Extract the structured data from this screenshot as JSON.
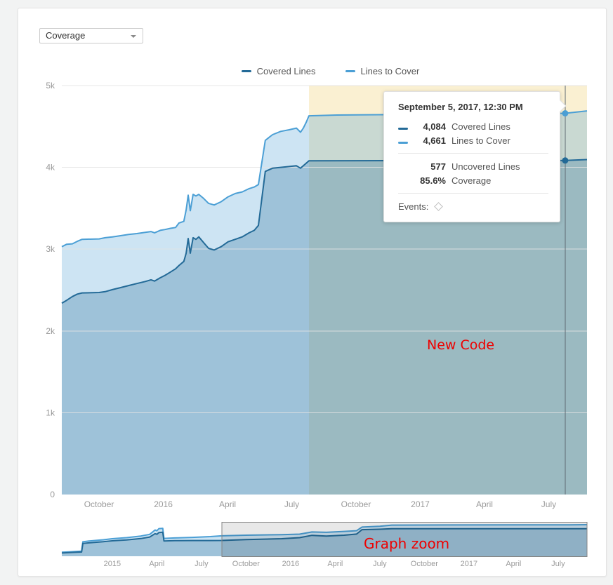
{
  "dropdown": {
    "value": "Coverage"
  },
  "legend": {
    "items": [
      {
        "label": "Covered Lines",
        "color": "#236a97"
      },
      {
        "label": "Lines to Cover",
        "color": "#4b9fd5"
      }
    ]
  },
  "tooltip": {
    "title": "September 5, 2017, 12:30 PM",
    "series": [
      {
        "value": "4,084",
        "label": "Covered Lines",
        "color": "#236a97"
      },
      {
        "value": "4,661",
        "label": "Lines to Cover",
        "color": "#4b9fd5"
      }
    ],
    "derived": [
      {
        "value": "577",
        "label": "Uncovered Lines"
      },
      {
        "value": "85.6%",
        "label": "Coverage"
      }
    ],
    "events_label": "Events:"
  },
  "annotations": {
    "new_code": "New Code",
    "graph_zoom": "Graph zoom"
  },
  "colors": {
    "covered_line": "#236a97",
    "to_cover_line": "#4b9fd5",
    "to_cover_fill": "rgba(75,159,213,0.28)",
    "covered_fill": "rgba(35,106,151,0.28)",
    "new_code_bg": "#faf0d2",
    "gridline": "#e3e3e3",
    "axis_text": "#9b9b9b",
    "hover_line": "#5f6a72",
    "brush_fill": "rgba(0,0,0,0.09)",
    "brush_stroke": "#858585"
  },
  "chart_data": [
    {
      "type": "area",
      "title": "Coverage activity graph",
      "x_domain": [
        2015.605,
        2017.649
      ],
      "y_domain": [
        0,
        5000
      ],
      "ylim": [
        0,
        5000
      ],
      "grid": true,
      "legend_position": "top-center",
      "y_ticks": [
        {
          "v": 0,
          "label": "0"
        },
        {
          "v": 1000,
          "label": "1k"
        },
        {
          "v": 2000,
          "label": "2k"
        },
        {
          "v": 3000,
          "label": "3k"
        },
        {
          "v": 4000,
          "label": "4k"
        },
        {
          "v": 5000,
          "label": "5k"
        }
      ],
      "x_ticks": [
        {
          "t": 2015.75,
          "label": "October"
        },
        {
          "t": 2016.0,
          "label": "2016"
        },
        {
          "t": 2016.25,
          "label": "April"
        },
        {
          "t": 2016.5,
          "label": "July"
        },
        {
          "t": 2016.75,
          "label": "October"
        },
        {
          "t": 2017.0,
          "label": "2017"
        },
        {
          "t": 2017.25,
          "label": "April"
        },
        {
          "t": 2017.5,
          "label": "July"
        }
      ],
      "new_code_period_start": 2016.567,
      "hover": {
        "t": 2017.564,
        "values": [
          4661,
          4084
        ]
      },
      "series": [
        {
          "name": "Lines to Cover",
          "color": "#4b9fd5",
          "points": [
            [
              2015.605,
              3030
            ],
            [
              2015.624,
              3060
            ],
            [
              2015.646,
              3065
            ],
            [
              2015.665,
              3095
            ],
            [
              2015.684,
              3120
            ],
            [
              2015.75,
              3125
            ],
            [
              2015.774,
              3140
            ],
            [
              2015.802,
              3150
            ],
            [
              2015.834,
              3165
            ],
            [
              2015.865,
              3180
            ],
            [
              2015.897,
              3190
            ],
            [
              2015.93,
              3205
            ],
            [
              2015.952,
              3215
            ],
            [
              2015.966,
              3200
            ],
            [
              2015.988,
              3230
            ],
            [
              2016.007,
              3240
            ],
            [
              2016.028,
              3255
            ],
            [
              2016.048,
              3265
            ],
            [
              2016.061,
              3320
            ],
            [
              2016.08,
              3340
            ],
            [
              2016.089,
              3480
            ],
            [
              2016.097,
              3660
            ],
            [
              2016.105,
              3470
            ],
            [
              2016.116,
              3670
            ],
            [
              2016.127,
              3650
            ],
            [
              2016.138,
              3670
            ],
            [
              2016.157,
              3620
            ],
            [
              2016.176,
              3560
            ],
            [
              2016.198,
              3540
            ],
            [
              2016.225,
              3580
            ],
            [
              2016.252,
              3640
            ],
            [
              2016.28,
              3680
            ],
            [
              2016.307,
              3700
            ],
            [
              2016.334,
              3740
            ],
            [
              2016.354,
              3760
            ],
            [
              2016.37,
              3790
            ],
            [
              2016.397,
              4330
            ],
            [
              2016.425,
              4400
            ],
            [
              2016.457,
              4440
            ],
            [
              2016.49,
              4460
            ],
            [
              2016.518,
              4480
            ],
            [
              2016.534,
              4430
            ],
            [
              2016.545,
              4480
            ],
            [
              2016.556,
              4550
            ],
            [
              2016.567,
              4630
            ],
            [
              2016.676,
              4640
            ],
            [
              2016.895,
              4645
            ],
            [
              2017.277,
              4650
            ],
            [
              2017.564,
              4661
            ],
            [
              2017.649,
              4690
            ]
          ]
        },
        {
          "name": "Covered Lines",
          "color": "#236a97",
          "points": [
            [
              2015.605,
              2340
            ],
            [
              2015.624,
              2375
            ],
            [
              2015.646,
              2420
            ],
            [
              2015.665,
              2450
            ],
            [
              2015.684,
              2465
            ],
            [
              2015.75,
              2470
            ],
            [
              2015.774,
              2480
            ],
            [
              2015.802,
              2505
            ],
            [
              2015.834,
              2530
            ],
            [
              2015.865,
              2555
            ],
            [
              2015.897,
              2580
            ],
            [
              2015.93,
              2605
            ],
            [
              2015.952,
              2625
            ],
            [
              2015.966,
              2610
            ],
            [
              2015.988,
              2650
            ],
            [
              2016.007,
              2680
            ],
            [
              2016.028,
              2720
            ],
            [
              2016.048,
              2760
            ],
            [
              2016.061,
              2800
            ],
            [
              2016.08,
              2850
            ],
            [
              2016.089,
              2950
            ],
            [
              2016.097,
              3130
            ],
            [
              2016.105,
              2950
            ],
            [
              2016.116,
              3140
            ],
            [
              2016.127,
              3120
            ],
            [
              2016.138,
              3150
            ],
            [
              2016.157,
              3080
            ],
            [
              2016.176,
              3010
            ],
            [
              2016.198,
              2990
            ],
            [
              2016.225,
              3030
            ],
            [
              2016.252,
              3090
            ],
            [
              2016.28,
              3120
            ],
            [
              2016.307,
              3150
            ],
            [
              2016.334,
              3200
            ],
            [
              2016.354,
              3230
            ],
            [
              2016.37,
              3290
            ],
            [
              2016.397,
              3950
            ],
            [
              2016.425,
              3990
            ],
            [
              2016.457,
              4000
            ],
            [
              2016.49,
              4010
            ],
            [
              2016.518,
              4020
            ],
            [
              2016.534,
              3990
            ],
            [
              2016.545,
              4020
            ],
            [
              2016.556,
              4050
            ],
            [
              2016.567,
              4080
            ],
            [
              2016.895,
              4082
            ],
            [
              2017.277,
              4083
            ],
            [
              2017.564,
              4084
            ],
            [
              2017.649,
              4095
            ]
          ]
        }
      ]
    },
    {
      "type": "area",
      "title": "Graph zoom overview",
      "x_domain": [
        2014.717,
        2017.662
      ],
      "y_domain": [
        0,
        5000
      ],
      "grid": false,
      "brush_range": [
        2015.614,
        2017.662
      ],
      "x_ticks": [
        {
          "t": 2015.0,
          "label": "2015"
        },
        {
          "t": 2015.25,
          "label": "April"
        },
        {
          "t": 2015.5,
          "label": "July"
        },
        {
          "t": 2015.75,
          "label": "October"
        },
        {
          "t": 2016.0,
          "label": "2016"
        },
        {
          "t": 2016.25,
          "label": "April"
        },
        {
          "t": 2016.5,
          "label": "July"
        },
        {
          "t": 2016.75,
          "label": "October"
        },
        {
          "t": 2017.0,
          "label": "2017"
        },
        {
          "t": 2017.25,
          "label": "April"
        },
        {
          "t": 2017.5,
          "label": "July"
        }
      ],
      "series": [
        {
          "name": "Lines to Cover",
          "color": "#4b9fd5",
          "points": [
            [
              2014.717,
              600
            ],
            [
              2014.76,
              660
            ],
            [
              2014.8,
              720
            ],
            [
              2014.828,
              760
            ],
            [
              2014.835,
              2150
            ],
            [
              2014.87,
              2260
            ],
            [
              2014.95,
              2450
            ],
            [
              2015.0,
              2600
            ],
            [
              2015.08,
              2760
            ],
            [
              2015.16,
              3000
            ],
            [
              2015.21,
              3250
            ],
            [
              2015.24,
              3900
            ],
            [
              2015.25,
              3780
            ],
            [
              2015.262,
              4100
            ],
            [
              2015.283,
              4150
            ],
            [
              2015.29,
              2650
            ],
            [
              2015.35,
              2720
            ],
            [
              2015.45,
              2800
            ],
            [
              2015.55,
              2920
            ],
            [
              2015.614,
              3030
            ],
            [
              2015.75,
              3125
            ],
            [
              2015.95,
              3210
            ],
            [
              2016.05,
              3280
            ],
            [
              2016.12,
              3600
            ],
            [
              2016.2,
              3550
            ],
            [
              2016.3,
              3690
            ],
            [
              2016.37,
              3790
            ],
            [
              2016.4,
              4330
            ],
            [
              2016.5,
              4460
            ],
            [
              2016.567,
              4630
            ],
            [
              2016.9,
              4645
            ],
            [
              2017.3,
              4652
            ],
            [
              2017.564,
              4661
            ],
            [
              2017.662,
              4690
            ]
          ]
        },
        {
          "name": "Covered Lines",
          "color": "#236a97",
          "points": [
            [
              2014.717,
              480
            ],
            [
              2014.76,
              540
            ],
            [
              2014.8,
              590
            ],
            [
              2014.828,
              630
            ],
            [
              2014.835,
              1900
            ],
            [
              2014.87,
              1990
            ],
            [
              2014.95,
              2160
            ],
            [
              2015.0,
              2290
            ],
            [
              2015.08,
              2420
            ],
            [
              2015.16,
              2620
            ],
            [
              2015.21,
              2850
            ],
            [
              2015.24,
              3350
            ],
            [
              2015.25,
              3260
            ],
            [
              2015.262,
              3520
            ],
            [
              2015.283,
              3560
            ],
            [
              2015.29,
              2260
            ],
            [
              2015.35,
              2310
            ],
            [
              2015.45,
              2330
            ],
            [
              2015.55,
              2335
            ],
            [
              2015.614,
              2340
            ],
            [
              2015.75,
              2470
            ],
            [
              2015.95,
              2600
            ],
            [
              2016.05,
              2760
            ],
            [
              2016.12,
              3100
            ],
            [
              2016.2,
              3000
            ],
            [
              2016.3,
              3120
            ],
            [
              2016.37,
              3290
            ],
            [
              2016.4,
              3950
            ],
            [
              2016.5,
              4010
            ],
            [
              2016.567,
              4080
            ],
            [
              2016.9,
              4082
            ],
            [
              2017.3,
              4083
            ],
            [
              2017.564,
              4084
            ],
            [
              2017.662,
              4095
            ]
          ]
        }
      ]
    }
  ]
}
